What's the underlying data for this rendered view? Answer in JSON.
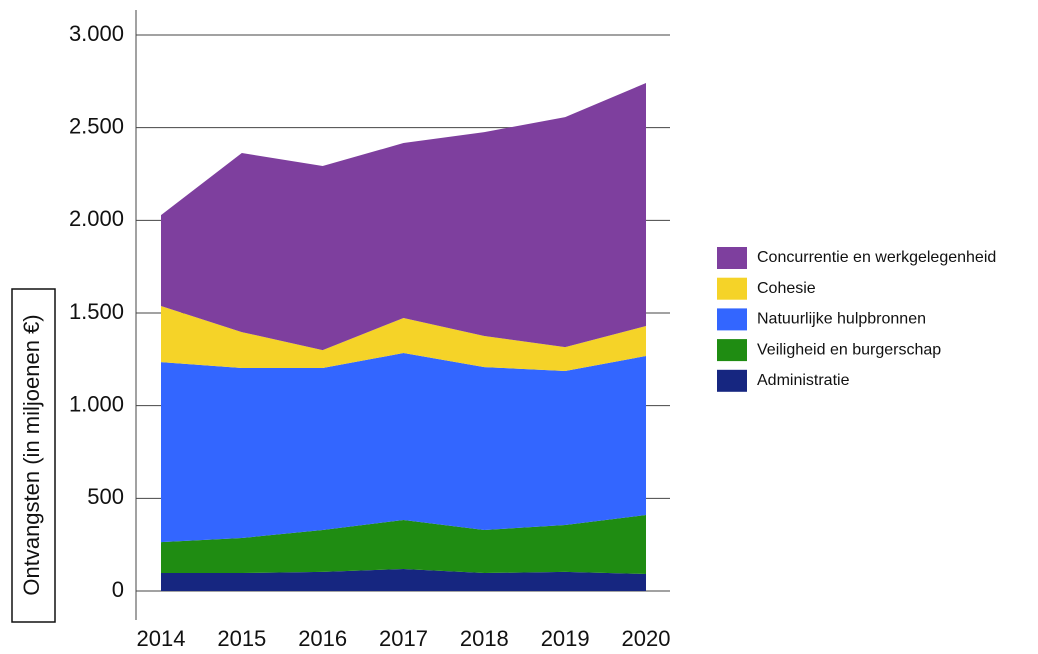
{
  "chart_data": {
    "type": "area",
    "stacked": true,
    "y_label": "Ontvangsten (in miljoenen €)",
    "x": [
      2014,
      2015,
      2016,
      2017,
      2018,
      2019,
      2020
    ],
    "xticks": [
      2014,
      2015,
      2016,
      2017,
      2018,
      2019,
      2020
    ],
    "xlim": [
      2014,
      2020
    ],
    "ylim": [
      0,
      3000
    ],
    "yticks": [
      0,
      500,
      {
        "value": 1000,
        "label": "1.000"
      },
      {
        "value": 1500,
        "label": "1.500"
      },
      {
        "value": 2000,
        "label": "2.000"
      },
      {
        "value": 2500,
        "label": "2.500"
      },
      {
        "value": 3000,
        "label": "3.000"
      }
    ],
    "grid": true,
    "legend": "right",
    "series": [
      {
        "name": "Administratie",
        "color": "#162680",
        "values": [
          97,
          97,
          103,
          119,
          97,
          103,
          92
        ]
      },
      {
        "name": "Veiligheid en burgerschap",
        "color": "#1f8c12",
        "values": [
          167,
          189,
          226,
          264,
          232,
          253,
          318
        ]
      },
      {
        "name": "Natuurlijke hulpbronnen",
        "color": "#3366ff",
        "values": [
          971,
          917,
          874,
          901,
          879,
          831,
          858
        ]
      },
      {
        "name": "Cohesie",
        "color": "#f5d328",
        "values": [
          303,
          194,
          97,
          189,
          168,
          129,
          162
        ]
      },
      {
        "name": "Concurrentie en werkgelegenheid",
        "color": "#7e3f9e",
        "values": [
          490,
          966,
          993,
          944,
          1100,
          1241,
          1311
        ]
      }
    ]
  }
}
